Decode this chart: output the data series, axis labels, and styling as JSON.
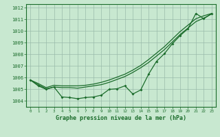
{
  "title": "Graphe pression niveau de la mer (hPa)",
  "background_color": "#c8e8d0",
  "grid_color": "#99bbaa",
  "line_color": "#1a6b2a",
  "x_ticks": [
    0,
    1,
    2,
    3,
    4,
    5,
    6,
    7,
    8,
    9,
    10,
    11,
    12,
    13,
    14,
    15,
    16,
    17,
    18,
    19,
    20,
    21,
    22,
    23
  ],
  "ylim": [
    1003.5,
    1012.3
  ],
  "yticks": [
    1004,
    1005,
    1006,
    1007,
    1008,
    1009,
    1010,
    1011,
    1012
  ],
  "line_jagged": [
    1005.8,
    1005.3,
    1005.0,
    1005.2,
    1004.35,
    1004.3,
    1004.2,
    1004.3,
    1004.35,
    1004.5,
    1005.0,
    1005.05,
    1005.3,
    1004.6,
    1004.95,
    1006.3,
    1007.4,
    1008.05,
    1008.9,
    1009.6,
    1010.2,
    1011.5,
    1011.05,
    1011.5
  ],
  "line_smooth_high": [
    1005.8,
    1005.5,
    1005.15,
    1005.35,
    1005.3,
    1005.3,
    1005.3,
    1005.35,
    1005.45,
    1005.6,
    1005.8,
    1006.05,
    1006.3,
    1006.65,
    1007.05,
    1007.55,
    1008.1,
    1008.65,
    1009.3,
    1009.95,
    1010.5,
    1011.05,
    1011.3,
    1011.5
  ],
  "line_smooth_low": [
    1005.8,
    1005.4,
    1005.05,
    1005.2,
    1005.15,
    1005.15,
    1005.1,
    1005.2,
    1005.3,
    1005.4,
    1005.6,
    1005.85,
    1006.1,
    1006.45,
    1006.85,
    1007.3,
    1007.85,
    1008.4,
    1009.05,
    1009.7,
    1010.25,
    1010.8,
    1011.1,
    1011.45
  ]
}
